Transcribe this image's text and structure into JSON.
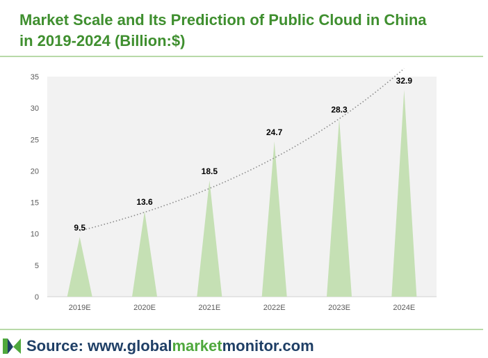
{
  "title_line1": "Market Scale and Its Prediction of Public Cloud in China",
  "title_line2": "in 2019-2024 (Billion:$)",
  "source_label": "Source: ",
  "source_url_parts": [
    "www.",
    "global",
    "market",
    "monitor",
    ".com"
  ],
  "colors": {
    "title": "#3f8f2f",
    "bar": "#c5e0b4",
    "trend": "#8a8a8a",
    "source": "#1f3f66",
    "accent": "#4fa83d"
  },
  "chart_data": {
    "type": "bar",
    "title": "",
    "xlabel": "",
    "ylabel": "",
    "categories": [
      "2019E",
      "2020E",
      "2021E",
      "2022E",
      "2023E",
      "2024E"
    ],
    "values": [
      9.5,
      13.6,
      18.5,
      24.7,
      28.3,
      32.9
    ],
    "value_labels": [
      "9.5",
      "13.6",
      "18.5",
      "24.7",
      "28.3",
      "32.9"
    ],
    "ylim": [
      0,
      35
    ],
    "yticks": [
      "0",
      "5",
      "10",
      "15",
      "20",
      "25",
      "30",
      "35"
    ],
    "bar_shape": "triangle",
    "trendline": "exponential-dotted",
    "grid": false,
    "legend": "none"
  }
}
